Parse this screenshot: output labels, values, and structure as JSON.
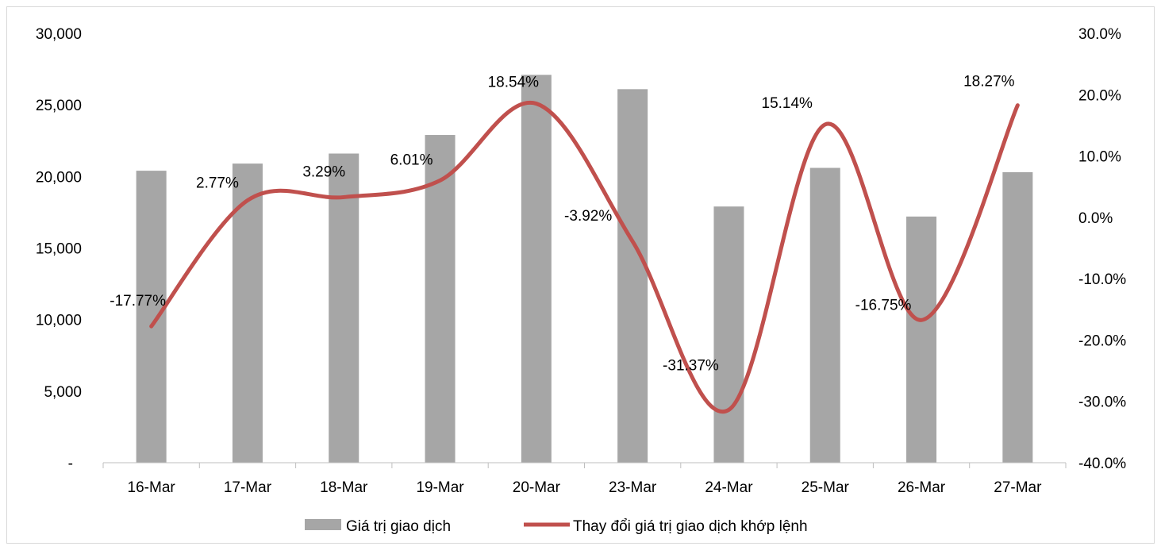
{
  "chart_data": {
    "type": "bar",
    "categories": [
      "16-Mar",
      "17-Mar",
      "18-Mar",
      "19-Mar",
      "20-Mar",
      "23-Mar",
      "24-Mar",
      "25-Mar",
      "26-Mar",
      "27-Mar"
    ],
    "series": [
      {
        "name": "Giá trị giao dịch",
        "type": "bar",
        "axis": "left",
        "color": "#a6a6a6",
        "values": [
          20400,
          20900,
          21600,
          22900,
          27100,
          26100,
          17900,
          20600,
          17200,
          20300
        ]
      },
      {
        "name": "Thay đổi giá trị giao dịch khớp lệnh",
        "type": "line",
        "axis": "right",
        "color": "#c0504d",
        "values": [
          -17.77,
          2.77,
          3.29,
          6.01,
          18.54,
          -3.92,
          -31.37,
          15.14,
          -16.75,
          18.27
        ],
        "labels": [
          "-17.77%",
          "2.77%",
          "3.29%",
          "6.01%",
          "18.54%",
          "-3.92%",
          "-31.37%",
          "15.14%",
          "-16.75%",
          "18.27%"
        ]
      }
    ],
    "y_left": {
      "range": [
        0,
        30000
      ],
      "ticks": [
        0,
        5000,
        10000,
        15000,
        20000,
        25000,
        30000
      ],
      "tick_labels": [
        "-",
        "5,000",
        "10,000",
        "15,000",
        "20,000",
        "25,000",
        "30,000"
      ]
    },
    "y_right": {
      "range": [
        -40,
        30
      ],
      "ticks": [
        -40,
        -30,
        -20,
        -10,
        0,
        10,
        20,
        30
      ],
      "tick_labels": [
        "-40.0%",
        "-30.0%",
        "-20.0%",
        "-10.0%",
        "0.0%",
        "10.0%",
        "20.0%",
        "30.0%"
      ]
    },
    "grid": false,
    "legend_position": "bottom"
  }
}
